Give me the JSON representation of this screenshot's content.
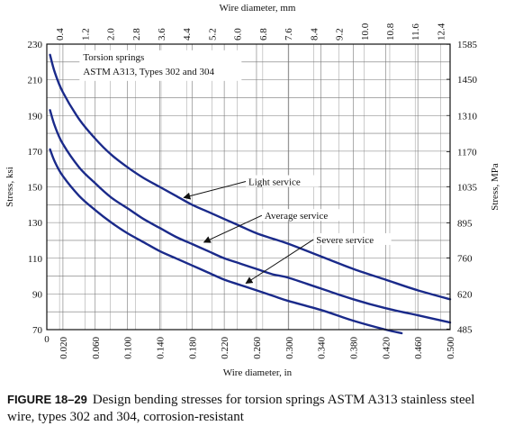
{
  "chart_data": {
    "type": "line",
    "title": "",
    "xlabel": "Wire diameter, in",
    "ylabel": "Stress, ksi",
    "x2label": "Wire diameter, mm",
    "y2label": "Stress, MPa",
    "xlim": [
      0,
      0.5
    ],
    "ylim": [
      70,
      230
    ],
    "x_ticks": [
      "0.020",
      "0.060",
      "0.100",
      "0.140",
      "0.180",
      "0.220",
      "0.260",
      "0.300",
      "0.340",
      "0.380",
      "0.420",
      "0.460",
      "0.500"
    ],
    "x_tick_values": [
      0.02,
      0.06,
      0.1,
      0.14,
      0.18,
      0.22,
      0.26,
      0.3,
      0.34,
      0.38,
      0.42,
      0.46,
      0.5
    ],
    "x_origin_label": "0",
    "y_ticks": [
      "70",
      "90",
      "110",
      "130",
      "150",
      "170",
      "190",
      "210",
      "230"
    ],
    "y_tick_values": [
      70,
      90,
      110,
      130,
      150,
      170,
      190,
      210,
      230
    ],
    "x2_ticks": [
      "0.4",
      "1.2",
      "2.0",
      "2.8",
      "3.6",
      "4.4",
      "5.2",
      "6.0",
      "6.8",
      "7.6",
      "8.4",
      "9.2",
      "10.0",
      "10.8",
      "11.6",
      "12.4"
    ],
    "x2_tick_values": [
      0.4,
      1.2,
      2.0,
      2.8,
      3.6,
      4.4,
      5.2,
      6.0,
      6.8,
      7.6,
      8.4,
      9.2,
      10.0,
      10.8,
      11.6,
      12.4
    ],
    "y2_ticks": [
      "485",
      "620",
      "760",
      "895",
      "1035",
      "1170",
      "1310",
      "1450",
      "1585"
    ],
    "y2_tick_values": [
      485,
      620,
      760,
      895,
      1035,
      1170,
      1310,
      1450,
      1585
    ],
    "grid": true,
    "legend_box": [
      "Torsion springs",
      "ASTM A313, Types 302 and 304"
    ],
    "series": [
      {
        "name": "Light service",
        "x": [
          0.004,
          0.01,
          0.02,
          0.04,
          0.06,
          0.08,
          0.1,
          0.12,
          0.14,
          0.16,
          0.18,
          0.2,
          0.22,
          0.24,
          0.26,
          0.28,
          0.3,
          0.34,
          0.38,
          0.42,
          0.46,
          0.5
        ],
        "y": [
          224,
          214,
          203,
          188,
          177,
          168,
          161,
          155,
          150,
          145,
          140,
          136,
          132,
          128,
          124,
          121,
          118,
          111,
          104,
          98,
          92,
          87
        ]
      },
      {
        "name": "Average service",
        "x": [
          0.004,
          0.01,
          0.02,
          0.04,
          0.06,
          0.08,
          0.1,
          0.12,
          0.14,
          0.16,
          0.18,
          0.2,
          0.22,
          0.24,
          0.26,
          0.28,
          0.3,
          0.34,
          0.38,
          0.42,
          0.46,
          0.5
        ],
        "y": [
          193,
          184,
          174,
          161,
          152,
          144,
          138,
          132,
          127,
          122,
          118,
          114,
          110,
          107,
          104,
          101,
          99,
          93,
          87,
          82,
          78,
          74
        ]
      },
      {
        "name": "Severe service",
        "x": [
          0.004,
          0.01,
          0.02,
          0.04,
          0.06,
          0.08,
          0.1,
          0.12,
          0.14,
          0.16,
          0.18,
          0.2,
          0.22,
          0.24,
          0.26,
          0.28,
          0.3,
          0.34,
          0.38,
          0.42,
          0.44
        ],
        "y": [
          171,
          164,
          156,
          145,
          137,
          130,
          124,
          119,
          114,
          110,
          106,
          102,
          98,
          95,
          92,
          89,
          86,
          81,
          75,
          70,
          68
        ]
      }
    ],
    "annotations": [
      {
        "text": "Light service",
        "x": 0.25,
        "y": 152,
        "arrow_x": 0.17,
        "arrow_y": 144
      },
      {
        "text": "Average service",
        "x": 0.27,
        "y": 133,
        "arrow_x": 0.195,
        "arrow_y": 119
      },
      {
        "text": "Severe service",
        "x": 0.334,
        "y": 119.5,
        "arrow_x": 0.247,
        "arrow_y": 96
      }
    ]
  },
  "caption": {
    "figure_label": "FIGURE 18–29",
    "text": "Design bending stresses for torsion springs ASTM A313 stainless steel wire, types 302 and 304, corrosion-resistant"
  }
}
